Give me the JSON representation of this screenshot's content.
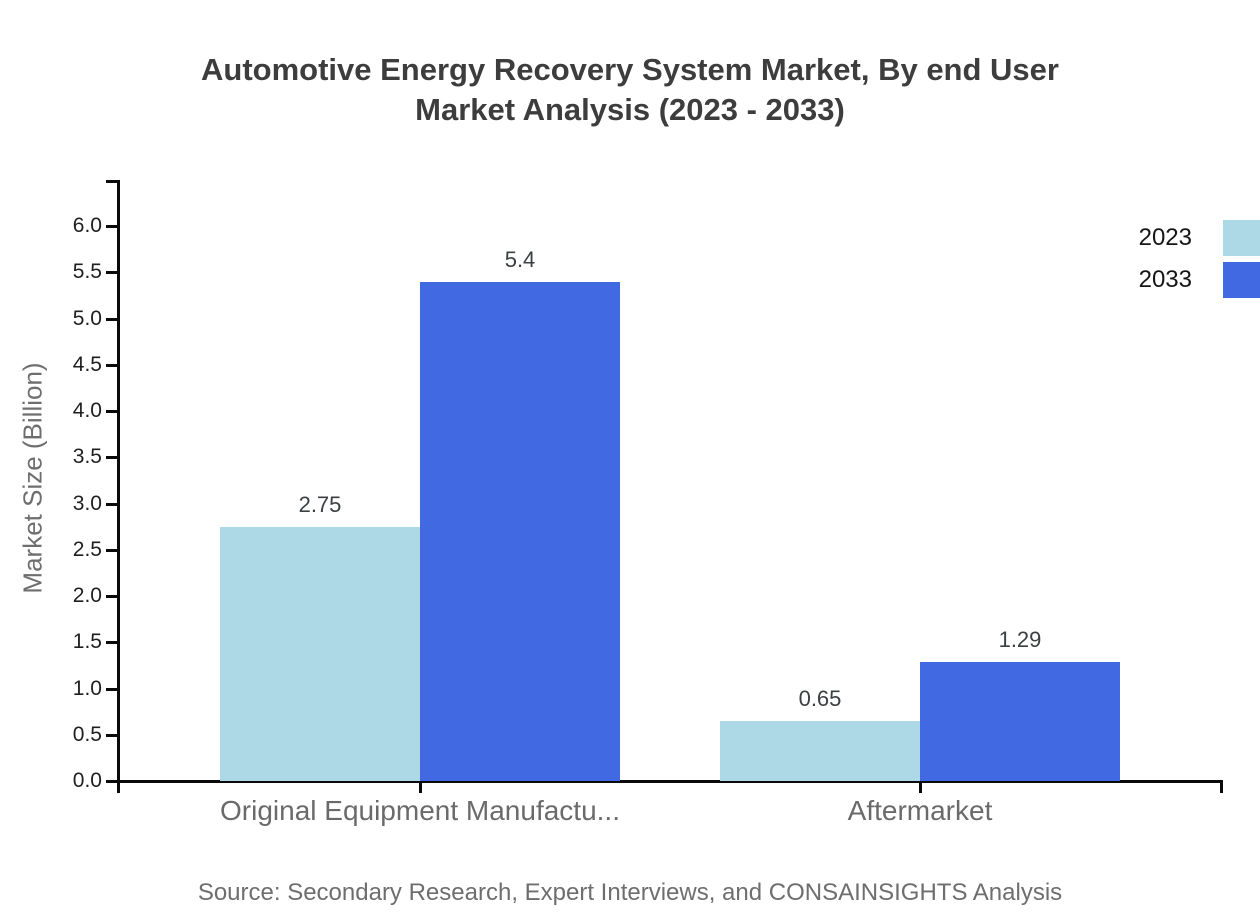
{
  "title": {
    "line1": "Automotive Energy Recovery System Market, By end User",
    "line2": "Market Analysis (2023 - 2033)"
  },
  "source": "Source: Secondary Research, Expert Interviews, and CONSAINSIGHTS Analysis",
  "legend": {
    "position": "top-right",
    "items": [
      {
        "label": "2023",
        "color": "#ADD8E6"
      },
      {
        "label": "2033",
        "color": "#4169E1"
      }
    ]
  },
  "chart_data": {
    "type": "bar",
    "title": "Automotive Energy Recovery System Market, By end User Market Analysis (2023 - 2033)",
    "categories": [
      "Original Equipment Manufactu...",
      "Aftermarket"
    ],
    "series": [
      {
        "name": "2023",
        "color": "#ADD8E6",
        "values": [
          2.75,
          0.65
        ]
      },
      {
        "name": "2033",
        "color": "#4169E1",
        "values": [
          5.4,
          1.29
        ]
      }
    ],
    "xlabel": "",
    "ylabel": "Market Size (Billion)",
    "ylim": [
      0,
      6.5
    ],
    "ytick_step": 0.5,
    "ytick_labels": [
      "0.0",
      "0.5",
      "1.0",
      "1.5",
      "2.0",
      "2.5",
      "3.0",
      "3.5",
      "4.0",
      "4.5",
      "5.0",
      "5.5",
      "6.0"
    ],
    "grid": false,
    "bar_value_labels": true,
    "legend_position": "top-right"
  }
}
